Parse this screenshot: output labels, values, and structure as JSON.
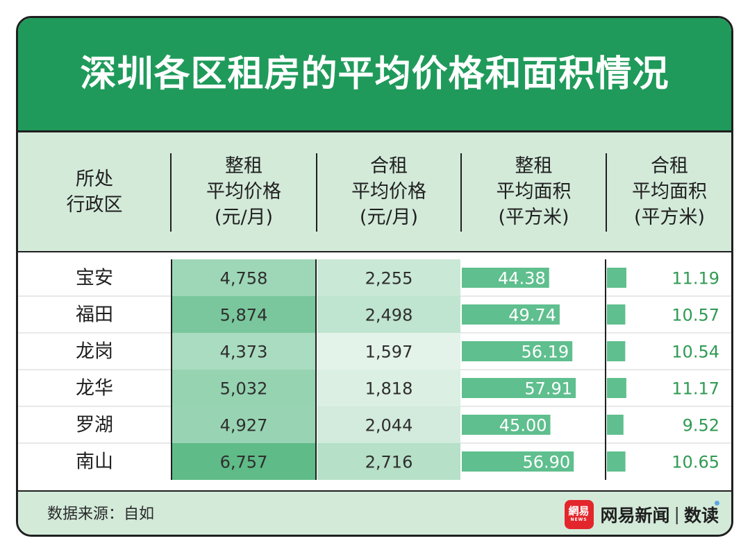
{
  "title": "深圳各区租房的平均价格和面积情况",
  "header": {
    "col0": [
      "所处",
      "行政区"
    ],
    "col1": [
      "整租",
      "平均价格",
      "(元/月)"
    ],
    "col2": [
      "合租",
      "平均价格",
      "(元/月)"
    ],
    "col3": [
      "整租",
      "平均面积",
      "(平方米)"
    ],
    "col4": [
      "合租",
      "平均面积",
      "(平方米)"
    ]
  },
  "chart_data": {
    "type": "table",
    "title": "深圳各区租房的平均价格和面积情况",
    "columns": [
      "所处行政区",
      "整租平均价格(元/月)",
      "合租平均价格(元/月)",
      "整租平均面积(平方米)",
      "合租平均面积(平方米)"
    ],
    "rows": [
      {
        "district": "宝安",
        "whole_price": "4,758",
        "shared_price": "2,255",
        "whole_area": "44.38",
        "shared_area": "11.19"
      },
      {
        "district": "福田",
        "whole_price": "5,874",
        "shared_price": "2,498",
        "whole_area": "49.74",
        "shared_area": "10.57"
      },
      {
        "district": "龙岗",
        "whole_price": "4,373",
        "shared_price": "1,597",
        "whole_area": "56.19",
        "shared_area": "10.54"
      },
      {
        "district": "龙华",
        "whole_price": "5,032",
        "shared_price": "1,818",
        "whole_area": "57.91",
        "shared_area": "11.17"
      },
      {
        "district": "罗湖",
        "whole_price": "4,927",
        "shared_price": "2,044",
        "whole_area": "45.00",
        "shared_area": "9.52"
      },
      {
        "district": "南山",
        "whole_price": "6,757",
        "shared_price": "2,716",
        "whole_area": "56.90",
        "shared_area": "10.65"
      }
    ]
  },
  "footer": {
    "source": "数据来源：自如",
    "logo_main": "網易",
    "logo_sub": "NEWS",
    "brand_name": "网易新闻",
    "brand_sep": "|",
    "brand_column_a": "数",
    "brand_column_b": "读"
  },
  "colors": {
    "title_bg": "#1f9a5a",
    "header_bg": "#d3ead9",
    "bar": "#5fbf8e",
    "area_text_green": "#2f9a52"
  }
}
